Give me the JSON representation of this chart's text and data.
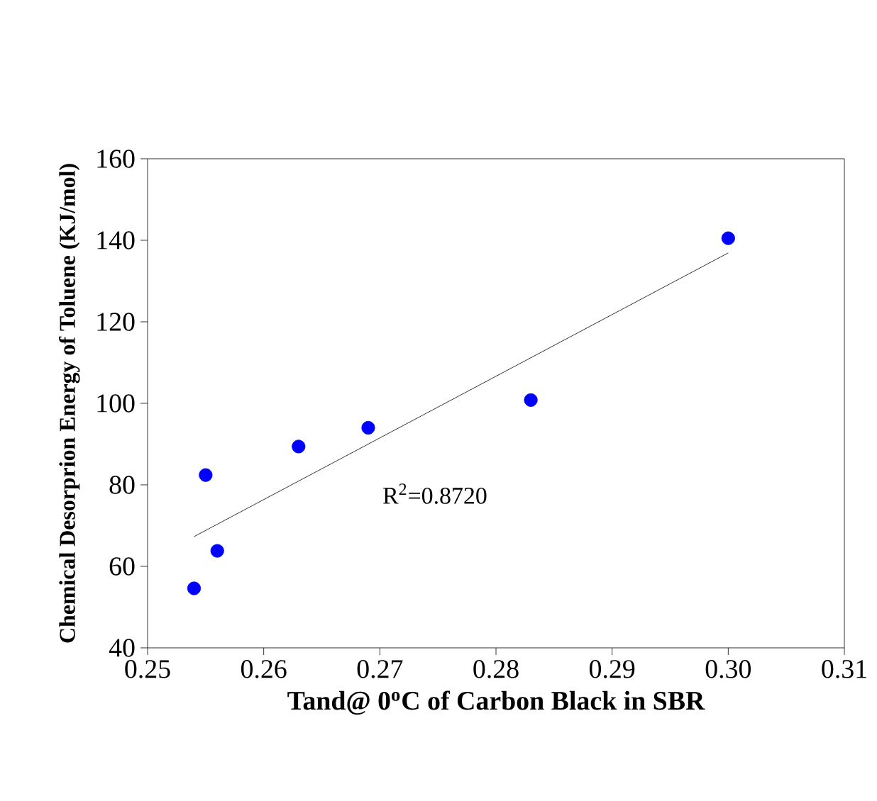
{
  "chart_data": {
    "type": "scatter",
    "xlabel": "Tand@ 0$^{o}$C of Carbon Black in SBR",
    "ylabel": "Chemical Desorprion Energy of Toluene (KJ/mol)",
    "xlim": [
      0.25,
      0.31
    ],
    "xticks": [
      {
        "value": 0.25,
        "label": "0.25"
      },
      {
        "value": 0.26,
        "label": "0.26"
      },
      {
        "value": 0.27,
        "label": "0.27"
      },
      {
        "value": 0.28,
        "label": "0.28"
      },
      {
        "value": 0.29,
        "label": "0.29"
      },
      {
        "value": 0.3,
        "label": "0.30"
      },
      {
        "value": 0.31,
        "label": "0.31"
      }
    ],
    "ylim": [
      40,
      160
    ],
    "yticks": [
      40,
      60,
      80,
      100,
      120,
      140,
      160
    ],
    "annotations": [
      "R$^{2}$=0.8720"
    ],
    "series": [
      {
        "color": "#0000ff",
        "marker": "circle",
        "x": [
          0.254,
          0.255,
          0.256,
          0.263,
          0.269,
          0.283,
          0.3
        ],
        "values": [
          54.6,
          82.4,
          63.8,
          89.4,
          94.0,
          100.8,
          140.5
        ]
      },
      {
        "type": "line",
        "color": "#000000",
        "marker": "none",
        "x": [
          0.254,
          0.3
        ],
        "values": [
          67.3,
          136.9
        ]
      }
    ]
  }
}
